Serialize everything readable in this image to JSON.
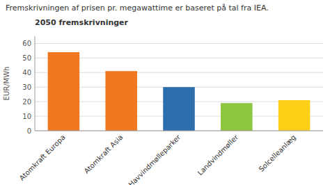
{
  "chart_data": {
    "type": "bar",
    "title": "Fremskrivningen af prisen pr. megawattime er baseret på tal fra IEA.",
    "subtitle": "2050 fremskrivninger",
    "categories": [
      "Atomkraft Europa",
      "Atomkraft Asia",
      "Havvindmølleparker",
      "Landvindmøller",
      "Solcelleanlæg"
    ],
    "values": [
      54,
      41,
      30,
      19,
      21
    ],
    "colors": [
      "#F07820",
      "#F07820",
      "#2C6FAC",
      "#8DC63F",
      "#FDD017"
    ],
    "ylabel": "EUR/MWh",
    "ylim": [
      0,
      65
    ],
    "yticks": [
      0,
      10,
      20,
      30,
      40,
      50,
      60
    ],
    "grid": true
  }
}
